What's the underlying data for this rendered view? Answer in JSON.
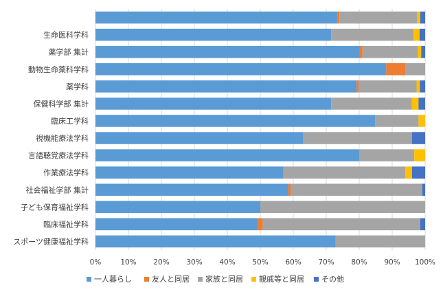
{
  "chart_data": {
    "type": "bar",
    "orientation": "horizontal",
    "stacked": "percent",
    "categories": [
      "",
      "生命医科学科",
      "薬学部 集計",
      "動物生命薬科学科",
      "薬学科",
      "保健科学部 集計",
      "臨床工学科",
      "視機能療法学科",
      "言語聴覚療法学科",
      "作業療法学科",
      "社会福祉学部 集計",
      "子ども保育福祉学科",
      "臨床福祉学科",
      "スポーツ健康福祉学科"
    ],
    "series": [
      {
        "name": "一人暮らし",
        "color": "#5b9bd5",
        "values": [
          73.5,
          71.5,
          80.0,
          88.2,
          79.2,
          71.5,
          84.8,
          63.0,
          80.0,
          57.0,
          58.5,
          50.0,
          49.2,
          72.8
        ]
      },
      {
        "name": "友人と同居",
        "color": "#ed7d31",
        "values": [
          0.5,
          0,
          1.0,
          5.9,
          0.6,
          0,
          0,
          0,
          0,
          0,
          0.8,
          0,
          1.5,
          0
        ]
      },
      {
        "name": "家族と同居",
        "color": "#a5a5a5",
        "values": [
          23.5,
          25.0,
          16.8,
          5.9,
          17.6,
          24.5,
          13.2,
          33.0,
          16.7,
          37.0,
          39.8,
          50.0,
          47.8,
          27.2
        ]
      },
      {
        "name": "親戚等と同居",
        "color": "#ffc000",
        "values": [
          1.0,
          1.8,
          1.0,
          0,
          1.0,
          2.0,
          2.0,
          0,
          3.3,
          2.0,
          0,
          0,
          0,
          0
        ]
      },
      {
        "name": "その他",
        "color": "#4472c4",
        "values": [
          1.5,
          1.7,
          1.2,
          0,
          1.6,
          2.0,
          0,
          4.0,
          0,
          4.0,
          0.9,
          0,
          1.5,
          0
        ]
      }
    ],
    "xlim": [
      0,
      100
    ],
    "x_ticks": [
      "0%",
      "10%",
      "20%",
      "30%",
      "40%",
      "50%",
      "60%",
      "70%",
      "80%",
      "90%",
      "100%"
    ],
    "grid": true,
    "legend_position": "bottom"
  }
}
